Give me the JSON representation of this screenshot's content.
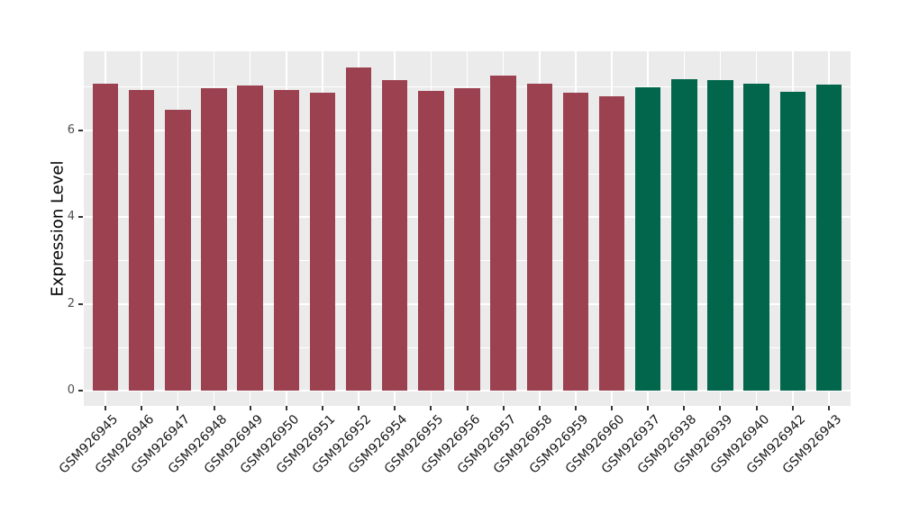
{
  "chart_data": {
    "type": "bar",
    "title": "",
    "xlabel": "",
    "ylabel": "Expression Level",
    "ylim": [
      0,
      7.8
    ],
    "y_ticks": [
      0,
      2,
      4,
      6
    ],
    "y_minor_ticks": [
      1,
      3,
      5,
      7
    ],
    "grid": true,
    "legend": "none",
    "panel_background": "#EBEBEB",
    "grid_color": "#FFFFFF",
    "tick_color": "#333333",
    "categories": [
      "GSM926945",
      "GSM926946",
      "GSM926947",
      "GSM926948",
      "GSM926949",
      "GSM926950",
      "GSM926951",
      "GSM926952",
      "GSM926954",
      "GSM926955",
      "GSM926956",
      "GSM926957",
      "GSM926958",
      "GSM926959",
      "GSM926960",
      "GSM926937",
      "GSM926938",
      "GSM926939",
      "GSM926940",
      "GSM926942",
      "GSM926943"
    ],
    "values": [
      7.07,
      6.92,
      6.46,
      6.97,
      7.02,
      6.92,
      6.85,
      7.45,
      7.16,
      6.91,
      6.97,
      7.25,
      7.07,
      6.87,
      6.78,
      6.99,
      7.17,
      7.15,
      7.06,
      6.88,
      7.05
    ],
    "groups": [
      "group1",
      "group1",
      "group1",
      "group1",
      "group1",
      "group1",
      "group1",
      "group1",
      "group1",
      "group1",
      "group1",
      "group1",
      "group1",
      "group1",
      "group1",
      "group2",
      "group2",
      "group2",
      "group2",
      "group2",
      "group2"
    ],
    "palette": {
      "group1": "#9B4150",
      "group2": "#01664B"
    }
  }
}
